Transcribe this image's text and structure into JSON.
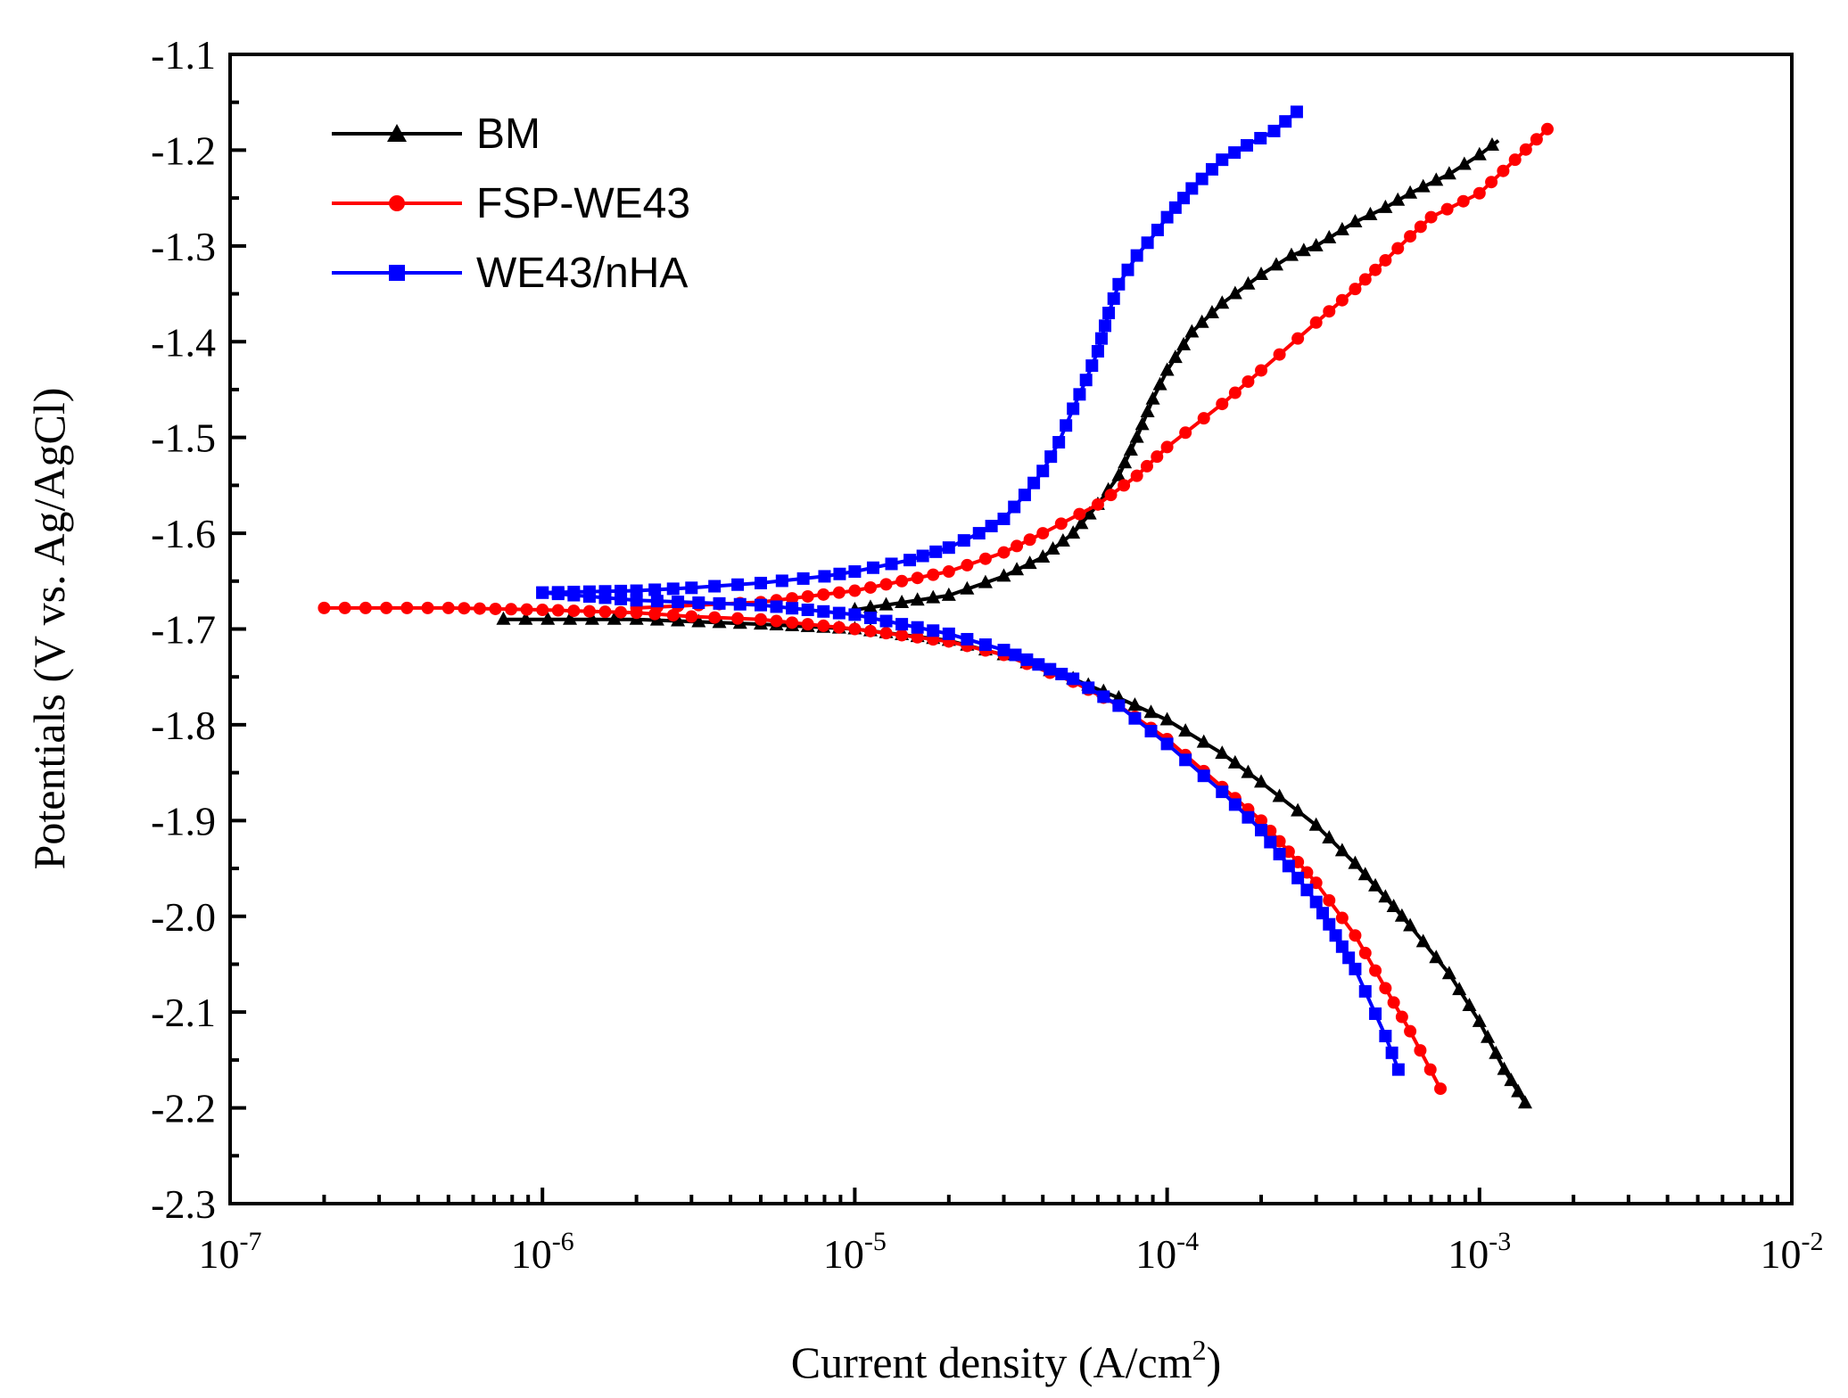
{
  "chart_data": {
    "type": "line",
    "xlabel": "Current density (A/cm",
    "xlabel_sup": "2",
    "xlabel_close": ")",
    "ylabel": "Potentials (V vs. Ag/AgCl)",
    "xscale": "log",
    "xlim": [
      1e-07,
      0.01
    ],
    "ylim": [
      -2.3,
      -1.1
    ],
    "x_ticks": [
      {
        "base": "10",
        "exp": "-7",
        "value": 1e-07
      },
      {
        "base": "10",
        "exp": "-6",
        "value": 1e-06
      },
      {
        "base": "10",
        "exp": "-5",
        "value": 1e-05
      },
      {
        "base": "10",
        "exp": "-4",
        "value": 0.0001
      },
      {
        "base": "10",
        "exp": "-3",
        "value": 0.001
      },
      {
        "base": "10",
        "exp": "-2",
        "value": 0.01
      }
    ],
    "y_ticks": [
      "-1.1",
      "-1.2",
      "-1.3",
      "-1.4",
      "-1.5",
      "-1.6",
      "-1.7",
      "-1.8",
      "-1.9",
      "-2.0",
      "-2.1",
      "-2.2",
      "-2.3"
    ],
    "legend_position": "top-left",
    "series": [
      {
        "name": "BM",
        "color": "#000000",
        "marker": "triangle",
        "anodic": [
          [
            1e-05,
            -1.68
          ],
          [
            2e-05,
            -1.665
          ],
          [
            3e-05,
            -1.645
          ],
          [
            4e-05,
            -1.625
          ],
          [
            5e-05,
            -1.6
          ],
          [
            6e-05,
            -1.57
          ],
          [
            7e-05,
            -1.54
          ],
          [
            8e-05,
            -1.5
          ],
          [
            9e-05,
            -1.46
          ],
          [
            0.0001,
            -1.43
          ],
          [
            0.00012,
            -1.39
          ],
          [
            0.00015,
            -1.36
          ],
          [
            0.0002,
            -1.33
          ],
          [
            0.00025,
            -1.31
          ],
          [
            0.0003,
            -1.3
          ],
          [
            0.0004,
            -1.275
          ],
          [
            0.0005,
            -1.26
          ],
          [
            0.0006,
            -1.245
          ],
          [
            0.0008,
            -1.225
          ],
          [
            0.001,
            -1.205
          ],
          [
            0.00115,
            -1.19
          ]
        ],
        "cathodic": [
          [
            7.5e-07,
            -1.69
          ],
          [
            2e-06,
            -1.69
          ],
          [
            5e-06,
            -1.695
          ],
          [
            1e-05,
            -1.7
          ],
          [
            2e-05,
            -1.712
          ],
          [
            3e-05,
            -1.727
          ],
          [
            5e-05,
            -1.752
          ],
          [
            7e-05,
            -1.772
          ],
          [
            0.0001,
            -1.795
          ],
          [
            0.00015,
            -1.83
          ],
          [
            0.0002,
            -1.86
          ],
          [
            0.0003,
            -1.905
          ],
          [
            0.0004,
            -1.945
          ],
          [
            0.0005,
            -1.98
          ],
          [
            0.0006,
            -2.01
          ],
          [
            0.0008,
            -2.06
          ],
          [
            0.001,
            -2.11
          ],
          [
            0.0012,
            -2.16
          ],
          [
            0.0014,
            -2.195
          ]
        ]
      },
      {
        "name": "FSP-WE43",
        "color": "#ff0000",
        "marker": "circle",
        "anodic": [
          [
            2e-06,
            -1.678
          ],
          [
            5e-06,
            -1.672
          ],
          [
            1e-05,
            -1.66
          ],
          [
            2e-05,
            -1.64
          ],
          [
            3e-05,
            -1.62
          ],
          [
            4e-05,
            -1.6
          ],
          [
            6e-05,
            -1.57
          ],
          [
            8e-05,
            -1.54
          ],
          [
            0.0001,
            -1.51
          ],
          [
            0.00015,
            -1.465
          ],
          [
            0.0002,
            -1.43
          ],
          [
            0.0003,
            -1.38
          ],
          [
            0.0004,
            -1.345
          ],
          [
            0.0005,
            -1.315
          ],
          [
            0.0006,
            -1.29
          ],
          [
            0.0007,
            -1.27
          ],
          [
            0.001,
            -1.245
          ],
          [
            0.0013,
            -1.21
          ],
          [
            0.00165,
            -1.178
          ]
        ],
        "cathodic": [
          [
            2e-07,
            -1.678
          ],
          [
            5e-07,
            -1.678
          ],
          [
            1e-06,
            -1.68
          ],
          [
            2e-06,
            -1.683
          ],
          [
            3e-06,
            -1.687
          ],
          [
            5e-06,
            -1.69
          ],
          [
            1e-05,
            -1.7
          ],
          [
            2e-05,
            -1.713
          ],
          [
            3e-05,
            -1.727
          ],
          [
            5e-05,
            -1.755
          ],
          [
            7e-05,
            -1.78
          ],
          [
            0.0001,
            -1.815
          ],
          [
            0.00015,
            -1.865
          ],
          [
            0.0002,
            -1.9
          ],
          [
            0.0003,
            -1.965
          ],
          [
            0.0004,
            -2.02
          ],
          [
            0.0005,
            -2.075
          ],
          [
            0.0006,
            -2.12
          ],
          [
            0.00075,
            -2.18
          ]
        ]
      },
      {
        "name": "WE43/nHA",
        "color": "#0000ff",
        "marker": "square",
        "anodic": [
          [
            1e-06,
            -1.662
          ],
          [
            2e-06,
            -1.66
          ],
          [
            3e-06,
            -1.657
          ],
          [
            5e-06,
            -1.652
          ],
          [
            8e-06,
            -1.645
          ],
          [
            1e-05,
            -1.64
          ],
          [
            1.5e-05,
            -1.628
          ],
          [
            2e-05,
            -1.615
          ],
          [
            2.5e-05,
            -1.6
          ],
          [
            3e-05,
            -1.585
          ],
          [
            3.5e-05,
            -1.56
          ],
          [
            4e-05,
            -1.535
          ],
          [
            4.5e-05,
            -1.505
          ],
          [
            5e-05,
            -1.47
          ],
          [
            5.5e-05,
            -1.44
          ],
          [
            6e-05,
            -1.41
          ],
          [
            6.5e-05,
            -1.37
          ],
          [
            7e-05,
            -1.34
          ],
          [
            8e-05,
            -1.31
          ],
          [
            9e-05,
            -1.29
          ],
          [
            0.0001,
            -1.27
          ],
          [
            0.00012,
            -1.24
          ],
          [
            0.00015,
            -1.21
          ],
          [
            0.00018,
            -1.195
          ],
          [
            0.00022,
            -1.18
          ],
          [
            0.00026,
            -1.16
          ]
        ],
        "cathodic": [
          [
            1e-06,
            -1.662
          ],
          [
            2e-06,
            -1.67
          ],
          [
            5e-06,
            -1.675
          ],
          [
            1e-05,
            -1.685
          ],
          [
            2e-05,
            -1.705
          ],
          [
            3e-05,
            -1.722
          ],
          [
            5e-05,
            -1.752
          ],
          [
            7e-05,
            -1.78
          ],
          [
            0.0001,
            -1.82
          ],
          [
            0.00015,
            -1.87
          ],
          [
            0.0002,
            -1.91
          ],
          [
            0.0003,
            -1.985
          ],
          [
            0.0004,
            -2.055
          ],
          [
            0.0005,
            -2.125
          ],
          [
            0.00055,
            -2.16
          ]
        ]
      }
    ]
  }
}
